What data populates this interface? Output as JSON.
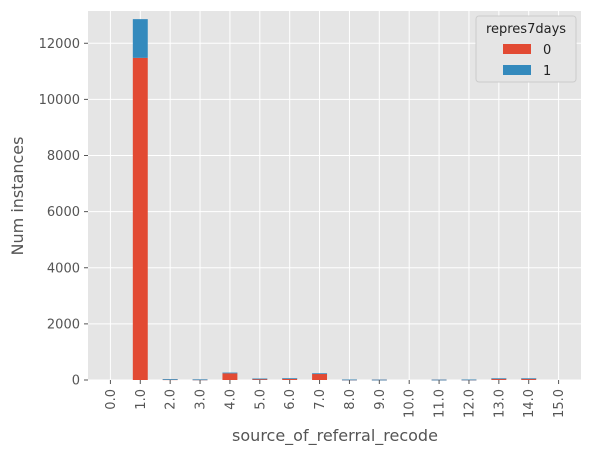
{
  "chart_data": {
    "type": "bar",
    "stacked": true,
    "title": "",
    "xlabel": "source_of_referral_recode",
    "ylabel": "Num instances",
    "categories": [
      "0.0",
      "1.0",
      "2.0",
      "3.0",
      "4.0",
      "5.0",
      "6.0",
      "7.0",
      "8.0",
      "9.0",
      "10.0",
      "11.0",
      "12.0",
      "13.0",
      "14.0",
      "15.0"
    ],
    "series": [
      {
        "name": "0",
        "color": "#E24A33",
        "values": [
          0,
          11480,
          25,
          20,
          240,
          45,
          55,
          215,
          15,
          12,
          0,
          12,
          15,
          55,
          55,
          0
        ]
      },
      {
        "name": "1",
        "color": "#348ABD",
        "values": [
          0,
          1380,
          3,
          2,
          25,
          8,
          8,
          25,
          2,
          2,
          0,
          2,
          2,
          5,
          5,
          0
        ]
      }
    ],
    "ylim": [
      0,
      13150
    ],
    "yticks": [
      0,
      2000,
      4000,
      6000,
      8000,
      10000,
      12000
    ],
    "legend": {
      "title": "repres7days",
      "placement": "top-right"
    },
    "grid": true,
    "style": "ggplot",
    "background": "#E5E5E5"
  }
}
